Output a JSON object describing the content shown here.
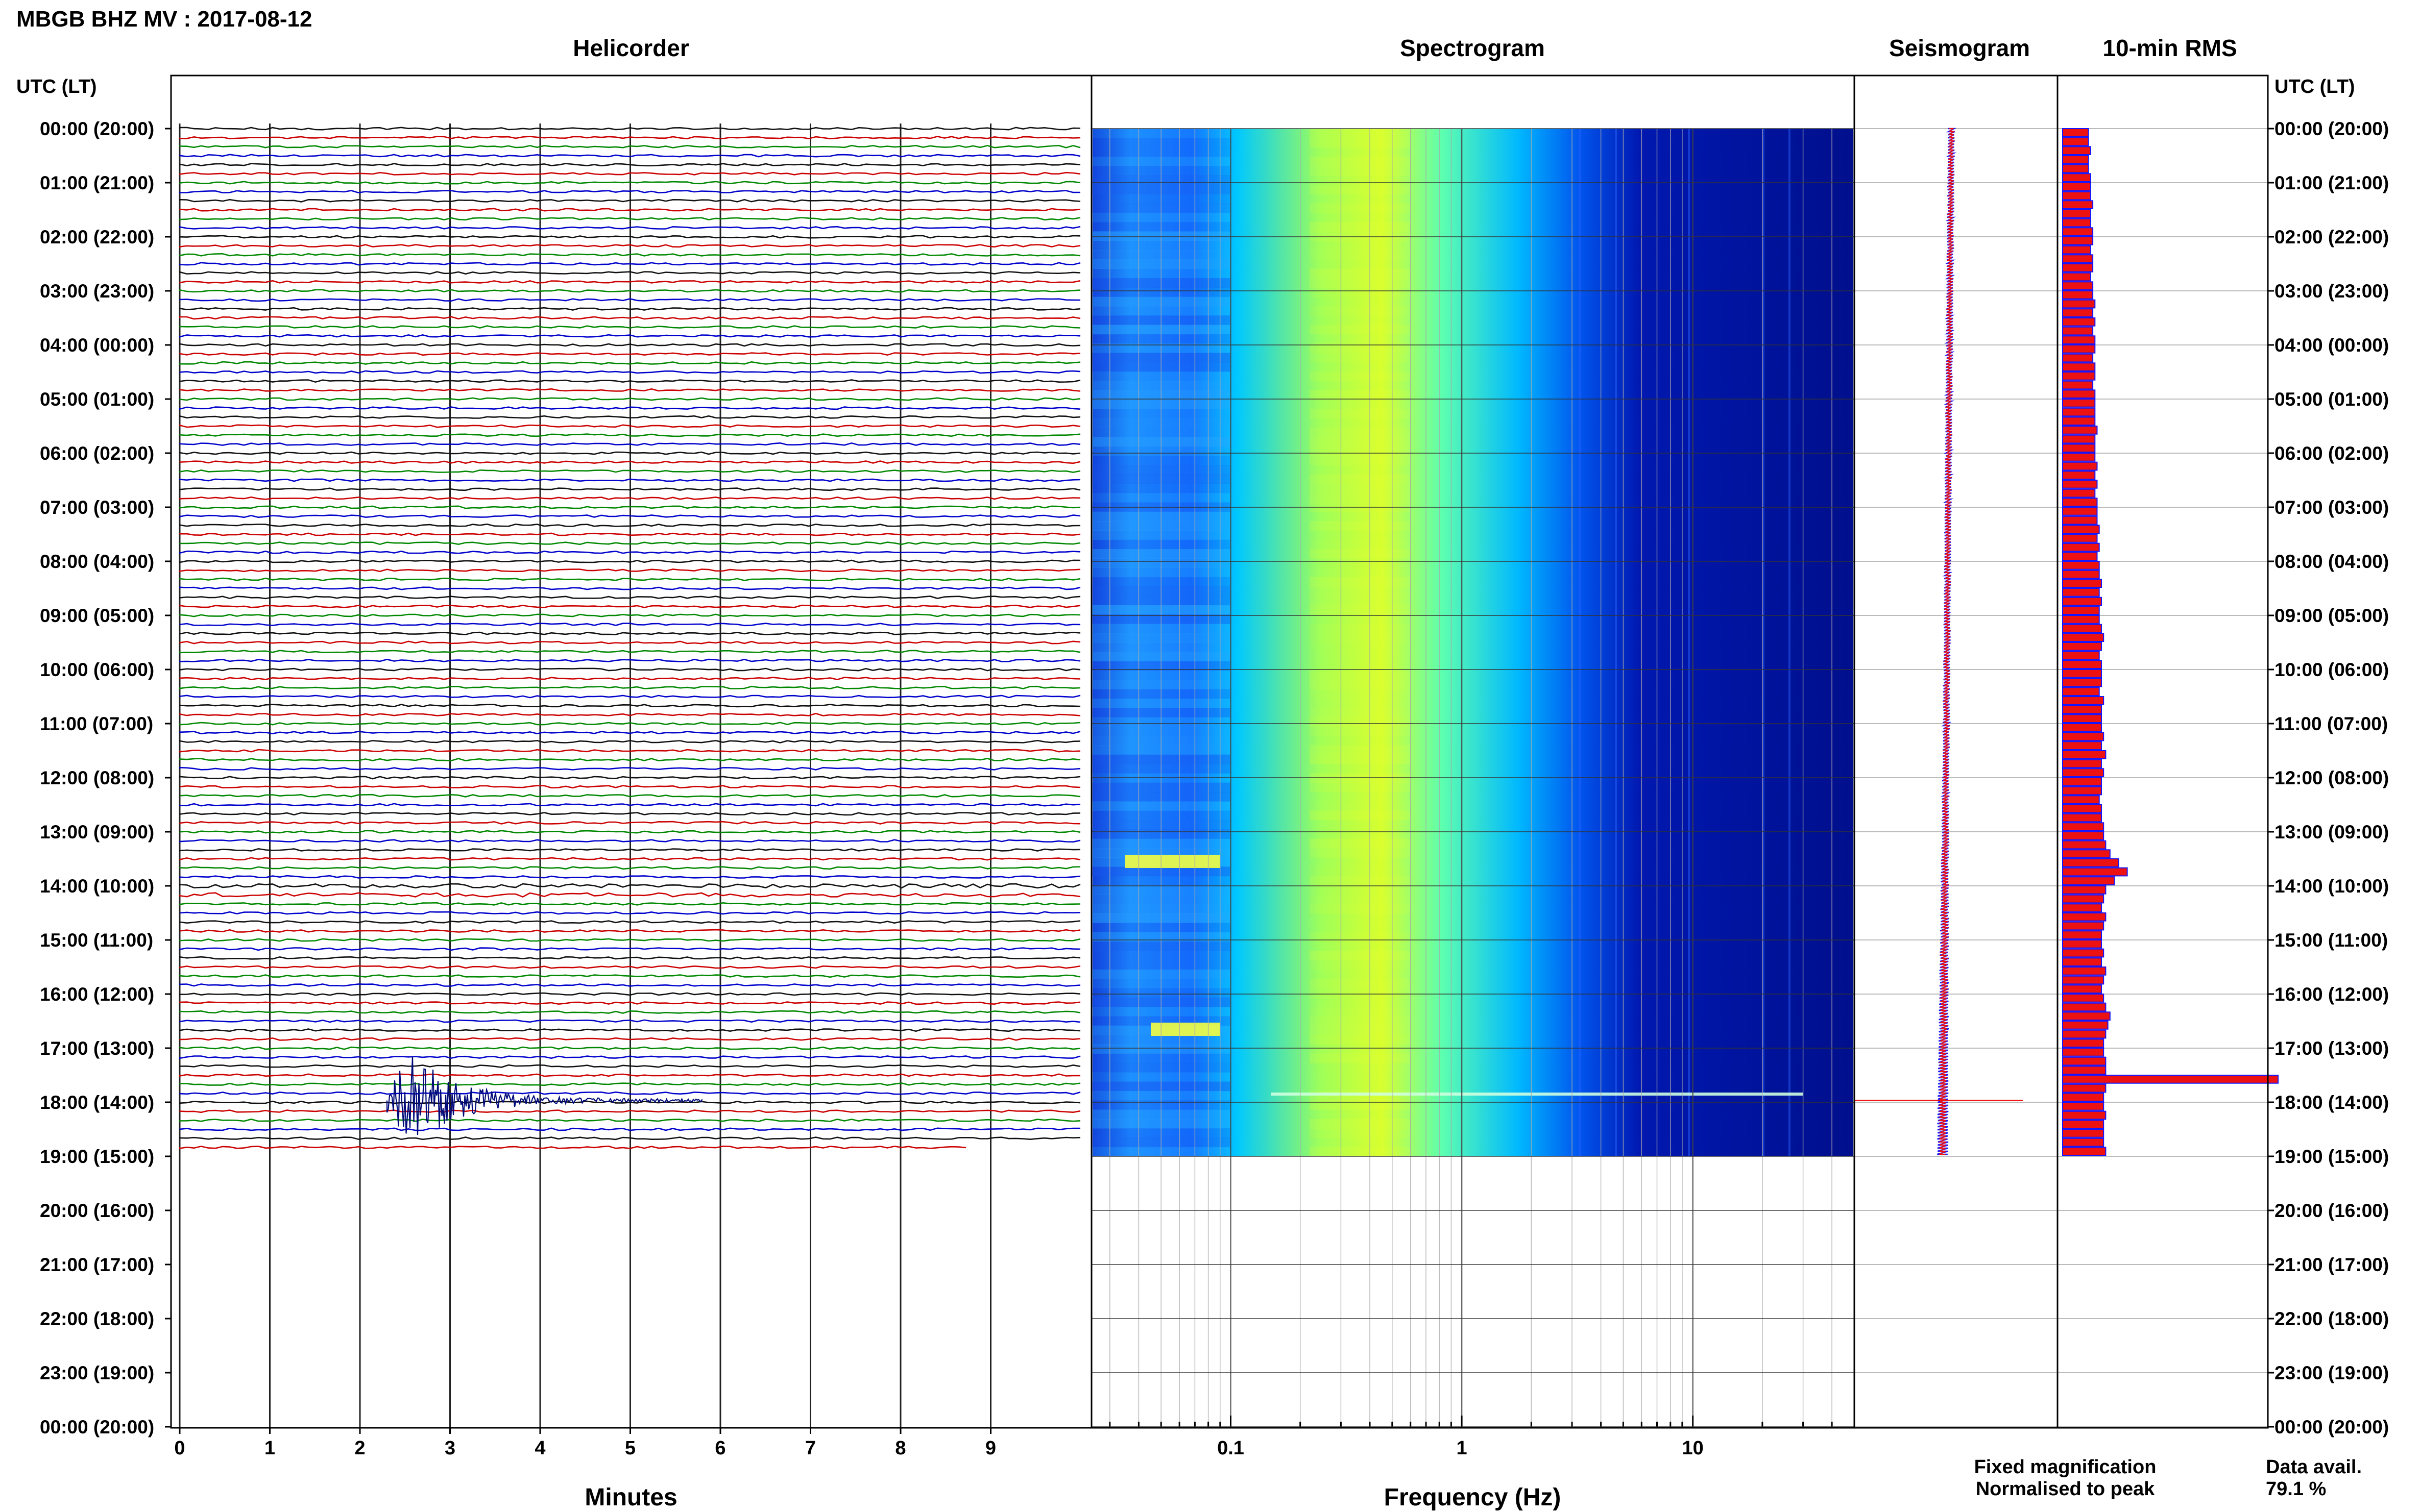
{
  "header": {
    "title": "MBGB BHZ MV : 2017-08-12"
  },
  "panels": {
    "helicorder": "Helicorder",
    "spectrogram": "Spectrogram",
    "seismogram": "Seismogram",
    "rms": "10-min RMS"
  },
  "axes": {
    "time_label": "UTC (LT)",
    "minutes_label": "Minutes",
    "frequency_label": "Frequency (Hz)"
  },
  "legend": {
    "fixed": "Fixed magnification",
    "normalised": "Normalised to peak",
    "fixed_color": "#1515ff",
    "normalised_color": "#ee1111"
  },
  "data_avail": {
    "label": "Data avail.",
    "value": "79.1 %"
  },
  "colors": {
    "trace_cycle": [
      "#111111",
      "#cc0000",
      "#008800",
      "#0000cc"
    ],
    "spectrogram_low": "#000f8c",
    "spectrogram_mid": "#00c8ff",
    "spectrogram_high": "#d7ff2f",
    "rms_fill": "#ee1111",
    "rms_edge": "#1515ff"
  },
  "chart_data": {
    "type": "heatmap",
    "time_ticks": [
      "00:00 (20:00)",
      "01:00 (21:00)",
      "02:00 (22:00)",
      "03:00 (23:00)",
      "04:00 (00:00)",
      "05:00 (01:00)",
      "06:00 (02:00)",
      "07:00 (03:00)",
      "08:00 (04:00)",
      "09:00 (05:00)",
      "10:00 (06:00)",
      "11:00 (07:00)",
      "12:00 (08:00)",
      "13:00 (09:00)",
      "14:00 (10:00)",
      "15:00 (11:00)",
      "16:00 (12:00)",
      "17:00 (13:00)",
      "18:00 (14:00)",
      "19:00 (15:00)",
      "20:00 (16:00)",
      "21:00 (17:00)",
      "22:00 (18:00)",
      "23:00 (19:00)",
      "00:00 (20:00)"
    ],
    "minute_ticks": [
      "0",
      "1",
      "2",
      "3",
      "4",
      "5",
      "6",
      "7",
      "8",
      "9"
    ],
    "frequency_ticks": [
      "0.1",
      "1",
      "10"
    ],
    "frequency_range_hz": [
      0.025,
      50
    ],
    "frequency_scale": "log",
    "minutes_range": [
      0,
      10
    ],
    "helicorder": {
      "rows_per_hour": 6,
      "data_end_hours": 19,
      "event": {
        "start_hour": 17.78,
        "start_minute": 2.3,
        "peak_minute": 2.55,
        "duration_minutes": 3.5
      }
    },
    "spectrogram": {
      "data_end_hours": 19,
      "peak_frequency_hz": 0.35,
      "bursts": [
        {
          "hour": 13.5,
          "frequency_hz": [
            0.035,
            0.09
          ]
        },
        {
          "hour": 16.6,
          "frequency_hz": [
            0.045,
            0.09
          ]
        },
        {
          "hour": 17.9,
          "frequency_hz": [
            0.15,
            30
          ]
        }
      ]
    },
    "rms_10min": [
      0.12,
      0.12,
      0.13,
      0.12,
      0.12,
      0.13,
      0.13,
      0.13,
      0.14,
      0.13,
      0.13,
      0.14,
      0.14,
      0.13,
      0.14,
      0.14,
      0.13,
      0.14,
      0.14,
      0.15,
      0.14,
      0.15,
      0.14,
      0.15,
      0.15,
      0.14,
      0.15,
      0.15,
      0.14,
      0.15,
      0.15,
      0.15,
      0.15,
      0.16,
      0.15,
      0.15,
      0.15,
      0.16,
      0.15,
      0.16,
      0.15,
      0.16,
      0.16,
      0.16,
      0.17,
      0.16,
      0.17,
      0.16,
      0.17,
      0.17,
      0.18,
      0.17,
      0.18,
      0.17,
      0.17,
      0.18,
      0.19,
      0.18,
      0.17,
      0.18,
      0.18,
      0.18,
      0.17,
      0.19,
      0.18,
      0.18,
      0.18,
      0.19,
      0.18,
      0.2,
      0.18,
      0.19,
      0.18,
      0.18,
      0.17,
      0.18,
      0.18,
      0.19,
      0.19,
      0.2,
      0.22,
      0.26,
      0.3,
      0.24,
      0.2,
      0.19,
      0.18,
      0.2,
      0.19,
      0.18,
      0.18,
      0.19,
      0.18,
      0.2,
      0.19,
      0.18,
      0.19,
      0.2,
      0.22,
      0.21,
      0.2,
      0.19,
      0.19,
      0.2,
      0.2,
      1.0,
      0.2,
      0.19,
      0.19,
      0.2,
      0.19,
      0.19,
      0.19,
      0.2
    ]
  }
}
